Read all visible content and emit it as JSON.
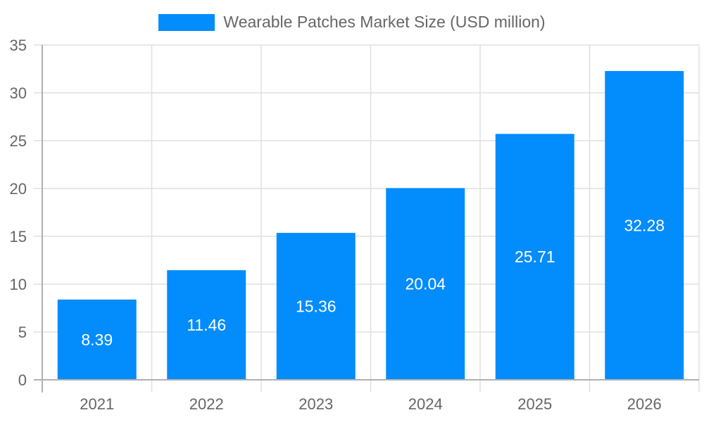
{
  "chart_data": {
    "type": "bar",
    "title": "",
    "legend": [
      {
        "label": "Wearable Patches Market Size (USD million)",
        "color": "#038cfc"
      }
    ],
    "legend_position": "top",
    "categories": [
      "2021",
      "2022",
      "2023",
      "2024",
      "2025",
      "2026"
    ],
    "series": [
      {
        "name": "Wearable Patches Market Size (USD million)",
        "values": [
          8.39,
          11.46,
          15.36,
          20.04,
          25.71,
          32.28
        ]
      }
    ],
    "data_labels": [
      "8.39",
      "11.46",
      "15.36",
      "20.04",
      "25.71",
      "32.28"
    ],
    "xlabel": "",
    "ylabel": "",
    "ylim": [
      0,
      35
    ],
    "yticks": [
      "0",
      "5",
      "10",
      "15",
      "20",
      "25",
      "30",
      "35"
    ],
    "grid": true
  },
  "legend": {
    "label": "Wearable Patches Market Size (USD million)",
    "color": "#038cfc"
  }
}
